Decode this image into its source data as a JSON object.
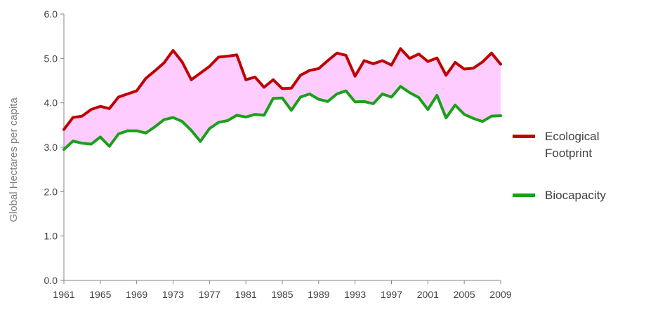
{
  "chart_data": {
    "type": "line",
    "title": "",
    "xlabel": "",
    "ylabel": "Global Hectares per capita",
    "x": [
      1961,
      1962,
      1963,
      1964,
      1965,
      1966,
      1967,
      1968,
      1969,
      1970,
      1971,
      1972,
      1973,
      1974,
      1975,
      1976,
      1977,
      1978,
      1979,
      1980,
      1981,
      1982,
      1983,
      1984,
      1985,
      1986,
      1987,
      1988,
      1989,
      1990,
      1991,
      1992,
      1993,
      1994,
      1995,
      1996,
      1997,
      1998,
      1999,
      2000,
      2001,
      2002,
      2003,
      2004,
      2005,
      2006,
      2007,
      2008,
      2009
    ],
    "xticks": [
      "1961",
      "1965",
      "1969",
      "1973",
      "1977",
      "1981",
      "1985",
      "1989",
      "1993",
      "1997",
      "2001",
      "2005",
      "2009"
    ],
    "ylim": [
      0,
      6
    ],
    "yticks": [
      "0.0",
      "1.0",
      "2.0",
      "3.0",
      "4.0",
      "5.0",
      "6.0"
    ],
    "legend_position": "right",
    "fill_between": {
      "upper": "Ecological Footprint",
      "lower": "Biocapacity",
      "color": "#ffccff"
    },
    "series": [
      {
        "name": "Ecological Footprint",
        "color": "#c00000",
        "values": [
          3.4,
          3.67,
          3.7,
          3.85,
          3.92,
          3.87,
          4.13,
          4.2,
          4.27,
          4.55,
          4.72,
          4.9,
          5.18,
          4.92,
          4.52,
          4.67,
          4.82,
          5.03,
          5.05,
          5.08,
          4.52,
          4.58,
          4.35,
          4.52,
          4.32,
          4.33,
          4.62,
          4.73,
          4.77,
          4.95,
          5.12,
          5.07,
          4.6,
          4.95,
          4.88,
          4.95,
          4.85,
          5.22,
          5.0,
          5.1,
          4.93,
          5.01,
          4.62,
          4.91,
          4.76,
          4.78,
          4.92,
          5.12,
          4.87
        ]
      },
      {
        "name": "Biocapacity",
        "color": "#1aa01a",
        "values": [
          2.95,
          3.14,
          3.09,
          3.07,
          3.23,
          3.02,
          3.3,
          3.37,
          3.37,
          3.32,
          3.46,
          3.62,
          3.67,
          3.58,
          3.38,
          3.13,
          3.42,
          3.56,
          3.6,
          3.72,
          3.68,
          3.74,
          3.72,
          4.1,
          4.11,
          3.83,
          4.13,
          4.2,
          4.08,
          4.03,
          4.2,
          4.27,
          4.02,
          4.03,
          3.98,
          4.2,
          4.13,
          4.37,
          4.23,
          4.12,
          3.85,
          4.17,
          3.66,
          3.95,
          3.74,
          3.65,
          3.58,
          3.7,
          3.71
        ]
      }
    ]
  }
}
